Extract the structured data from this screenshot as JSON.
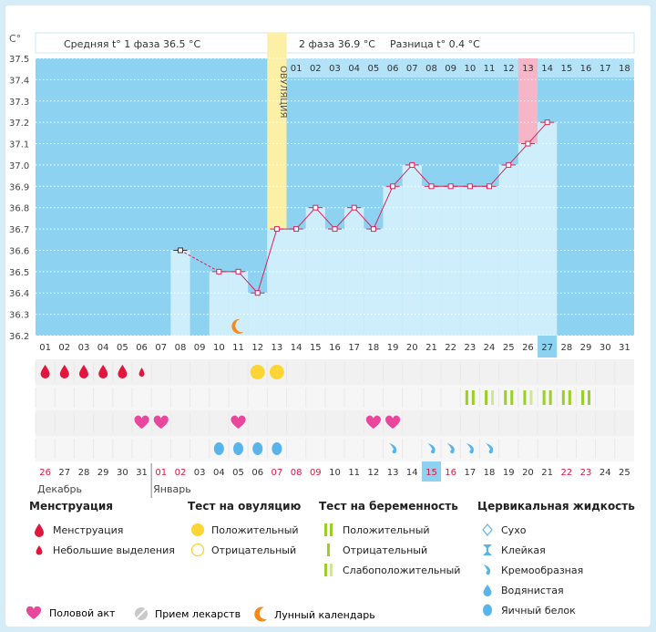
{
  "unit_label": "C°",
  "header": {
    "phase1_label": "Средняя t° 1 фаза",
    "phase1_value": "36.5 °C",
    "phase2_label": "2 фаза",
    "phase2_value": "36.9 °C",
    "diff_label": "Разница t°",
    "diff_value": "0.4 °C"
  },
  "ovulation_label": "ОВУЛЯЦИЯ",
  "cycle_days": [
    "01",
    "02",
    "03",
    "04",
    "05",
    "06",
    "07",
    "08",
    "09",
    "10",
    "11",
    "12",
    "13",
    "14",
    "15",
    "16",
    "17",
    "18"
  ],
  "cycle_day_highlight_index": 12,
  "bottom_days": [
    "01",
    "02",
    "03",
    "04",
    "05",
    "06",
    "07",
    "08",
    "09",
    "10",
    "11",
    "12",
    "13",
    "14",
    "15",
    "16",
    "17",
    "18",
    "19",
    "20",
    "21",
    "22",
    "23",
    "24",
    "25",
    "26",
    "27",
    "28",
    "29",
    "30",
    "31"
  ],
  "bottom_day_highlight_index": 26,
  "dates": [
    "26",
    "27",
    "28",
    "29",
    "30",
    "31",
    "01",
    "02",
    "03",
    "04",
    "05",
    "06",
    "07",
    "08",
    "09",
    "10",
    "11",
    "12",
    "13",
    "14",
    "15",
    "16",
    "17",
    "18",
    "19",
    "20",
    "21",
    "22",
    "23",
    "24",
    "25"
  ],
  "date_colors": [
    "#e0163f",
    "#333333",
    "#333333",
    "#333333",
    "#333333",
    "#333333",
    "#e0163f",
    "#e0163f",
    "#333333",
    "#333333",
    "#333333",
    "#333333",
    "#e0163f",
    "#e0163f",
    "#e0163f",
    "#333333",
    "#333333",
    "#333333",
    "#333333",
    "#333333",
    "#e0163f",
    "#e0163f",
    "#333333",
    "#333333",
    "#333333",
    "#333333",
    "#333333",
    "#e0163f",
    "#e0163f",
    "#333333",
    "#333333"
  ],
  "date_highlight_index": 20,
  "month_labels": [
    {
      "label": "Декабрь",
      "start_index": 0
    },
    {
      "label": "Январь",
      "start_index": 6
    }
  ],
  "colors": {
    "sky": "#8dd3f1",
    "bar": "#cfeefb",
    "ovulation": "#fbf0a6",
    "pink": "#f7b6c8",
    "line": "#d8235a",
    "grid": "#ffffff",
    "menstruation": "#e0163f",
    "sun": "#fcd434",
    "heart": "#e9479e",
    "drop": "#5ab4ec",
    "test": "#9bcf27",
    "test_light": "#cfe59a",
    "moon": "#f38a1b",
    "highlight_cell": "#8dd3f1"
  },
  "chart_data": {
    "type": "line",
    "ylabel": "C°",
    "ylim": [
      36.2,
      37.5
    ],
    "yticks": [
      "37.5",
      "37.4",
      "37.3",
      "37.2",
      "37.1",
      "37.0",
      "36.9",
      "36.8",
      "36.7",
      "36.6",
      "36.5",
      "36.4",
      "36.3",
      "36.2"
    ],
    "x": [
      8,
      10,
      11,
      12,
      13,
      14,
      15,
      16,
      17,
      18,
      19,
      20,
      21,
      22,
      23,
      24,
      25,
      26,
      27
    ],
    "temperatures": [
      36.6,
      36.5,
      36.5,
      36.4,
      36.7,
      36.7,
      36.8,
      36.7,
      36.8,
      36.7,
      36.9,
      37.0,
      36.9,
      36.9,
      36.9,
      36.9,
      37.0,
      37.1,
      37.2
    ],
    "dashed_segment": [
      8,
      10
    ],
    "ovulation_day": 13,
    "highlight_day": 26,
    "phase1_avg": 36.5,
    "phase2_avg": 36.9,
    "difference": 0.4
  },
  "markers": {
    "menstruation_big": [
      1,
      2,
      3,
      4,
      5
    ],
    "menstruation_small": [
      6
    ],
    "ovulation_test_positive": [
      12,
      13
    ],
    "pregnancy_test_positive": [
      23,
      25,
      27,
      28,
      29
    ],
    "pregnancy_test_light": [
      24,
      26
    ],
    "intercourse": [
      6,
      7,
      11,
      18,
      19
    ],
    "egg_white": [
      10,
      11,
      12,
      13
    ],
    "creamy": [
      19,
      21,
      22,
      23,
      24
    ],
    "moon": [
      11
    ]
  },
  "legend": {
    "menstruation": {
      "title": "Менструация",
      "items": [
        "Менструация",
        "Небольшие выделения"
      ]
    },
    "ovulation_test": {
      "title": "Тест на овуляцию",
      "items": [
        "Положительный",
        "Отрицательный"
      ]
    },
    "pregnancy_test": {
      "title": "Тест на беременность",
      "items": [
        "Положительный",
        "Отрицательный",
        "Слабоположительный"
      ]
    },
    "cervical": {
      "title": "Цервикальная жидкость",
      "items": [
        "Сухо",
        "Клейкая",
        "Кремообразная",
        "Водянистая",
        "Яичный белок"
      ]
    },
    "bottom": [
      "Половой акт",
      "Прием лекарств",
      "Лунный календарь"
    ]
  }
}
